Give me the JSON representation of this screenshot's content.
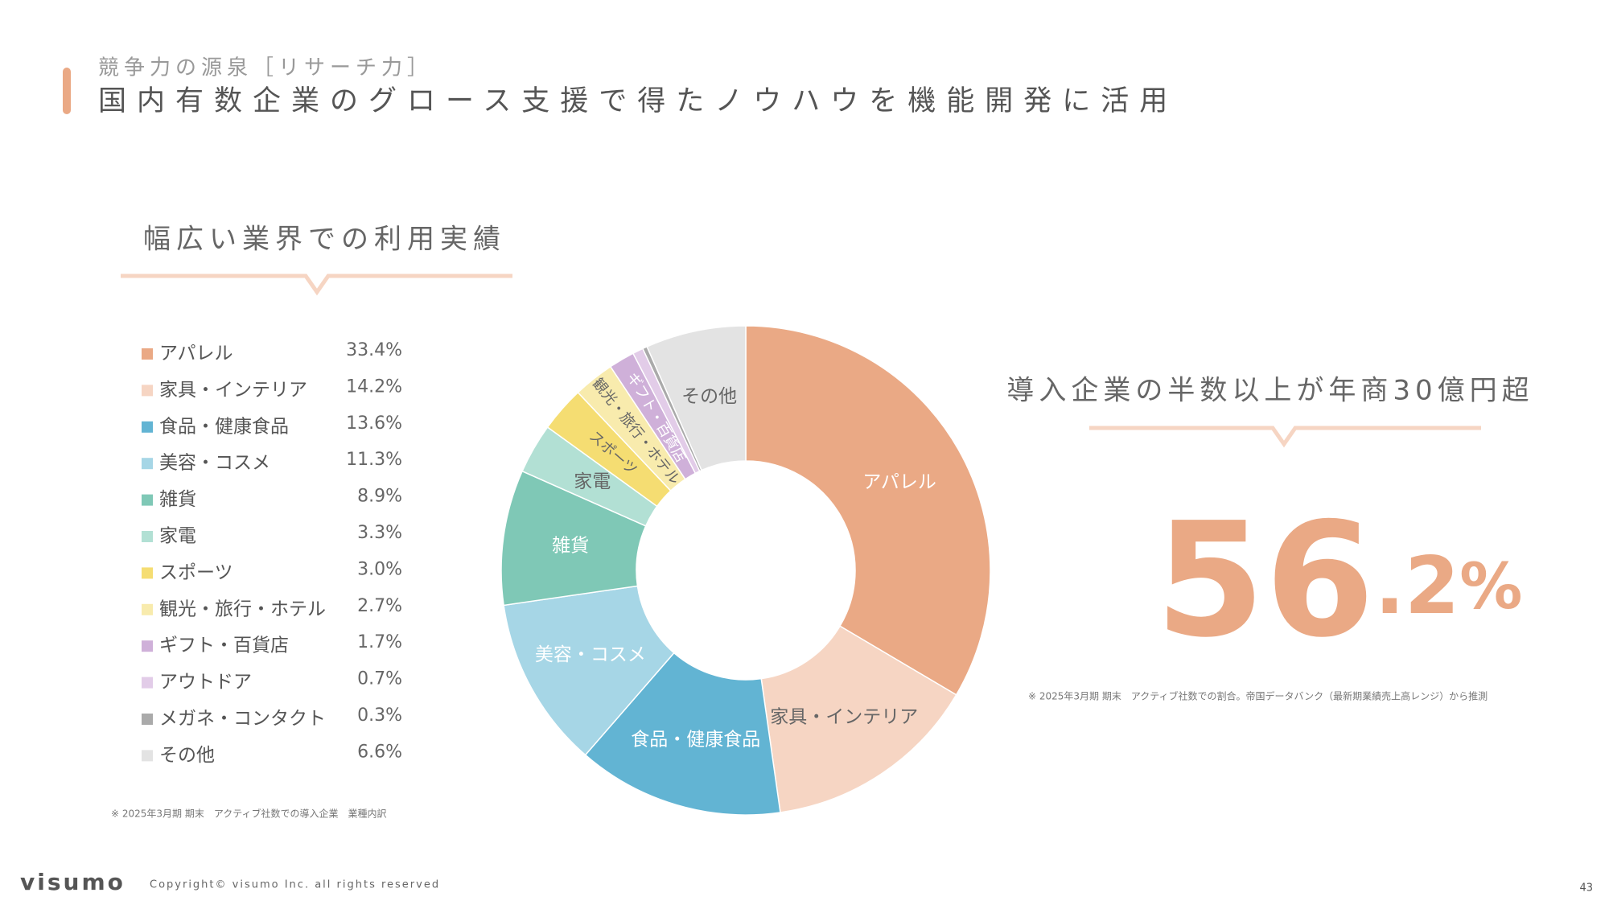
{
  "header": {
    "kicker": "競争力の源泉［リサーチ力］",
    "title": "国内有数企業のグロース支援で得たノウハウを機能開発に活用"
  },
  "chart_data": {
    "type": "donut",
    "title": "幅広い業界での利用実績",
    "categories": [
      "アパレル",
      "家具・インテリア",
      "食品・健康食品",
      "美容・コスメ",
      "雑貨",
      "家電",
      "スポーツ",
      "観光・旅行・ホテル",
      "ギフト・百貨店",
      "アウトドア",
      "メガネ・コンタクト",
      "その他"
    ],
    "values": [
      33.4,
      14.2,
      13.6,
      11.3,
      8.9,
      3.3,
      3.0,
      2.7,
      1.7,
      0.7,
      0.3,
      6.6
    ],
    "value_labels": [
      "33.4%",
      "14.2%",
      "13.6%",
      "11.3%",
      "8.9%",
      "3.3%",
      "3.0%",
      "2.7%",
      "1.7%",
      "0.7%",
      "0.3%",
      "6.6%"
    ],
    "colors": [
      "#eaa985",
      "#f6d5c3",
      "#62b4d3",
      "#a6d6e6",
      "#7fc8b6",
      "#b2e0d4",
      "#f5dd72",
      "#f8ebad",
      "#cfb0d9",
      "#e2cce8",
      "#aaaaaa",
      "#e3e3e3"
    ],
    "note": "※ 2025年3月期 期末　アクティブ社数での導入企業　業種内訳"
  },
  "highlight": {
    "title": "導入企業の半数以上が年商30億円超",
    "integer": "56",
    "decimal": ".2",
    "unit": "%",
    "note": "※ 2025年3月期 期末　アクティブ社数での割合。帝国データバンク（最新期業績売上高レンジ）から推測"
  },
  "footer": {
    "logo": "visumo",
    "copyright": "Copyright© visumo Inc. all rights reserved",
    "page": "43"
  }
}
